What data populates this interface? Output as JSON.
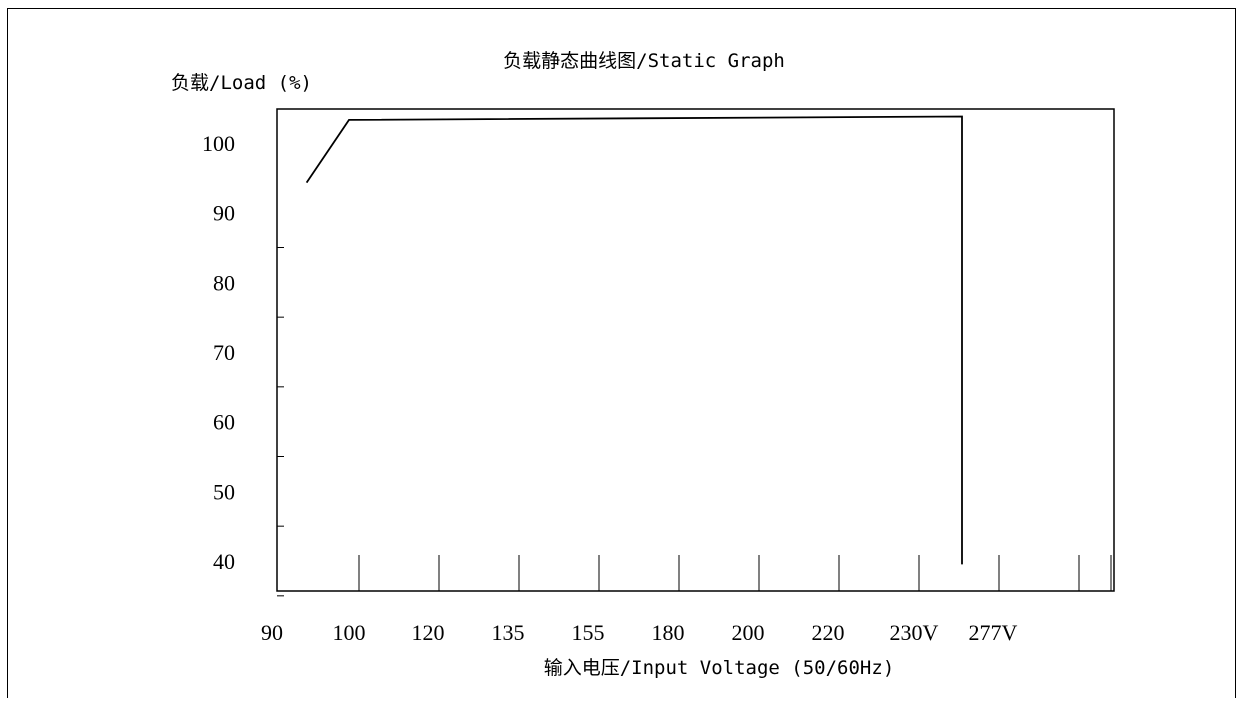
{
  "chart_data": {
    "type": "line",
    "title": "负载静态曲线图/Static Graph",
    "ylabel": "负载/Load (%)",
    "xlabel": "输入电压/Input Voltage (50/60Hz)",
    "y_ticks": [
      "100",
      "90",
      "80",
      "70",
      "60",
      "50",
      "40"
    ],
    "x_ticks": [
      "90",
      "100",
      "120",
      "135",
      "155",
      "180",
      "200",
      "220",
      "230V",
      "277V"
    ],
    "x_labels_shown": [
      "90",
      "100",
      "120",
      "135",
      "155",
      "180",
      "200",
      "220",
      "230V",
      "277V"
    ],
    "series": [
      {
        "values_x_index": [
          0.45,
          1.0,
          8.75,
          8.75
        ],
        "values_y": [
          92.3,
          101.3,
          101.8,
          37.5
        ]
      }
    ],
    "ylim": [
      35,
      105
    ],
    "grid": false
  }
}
